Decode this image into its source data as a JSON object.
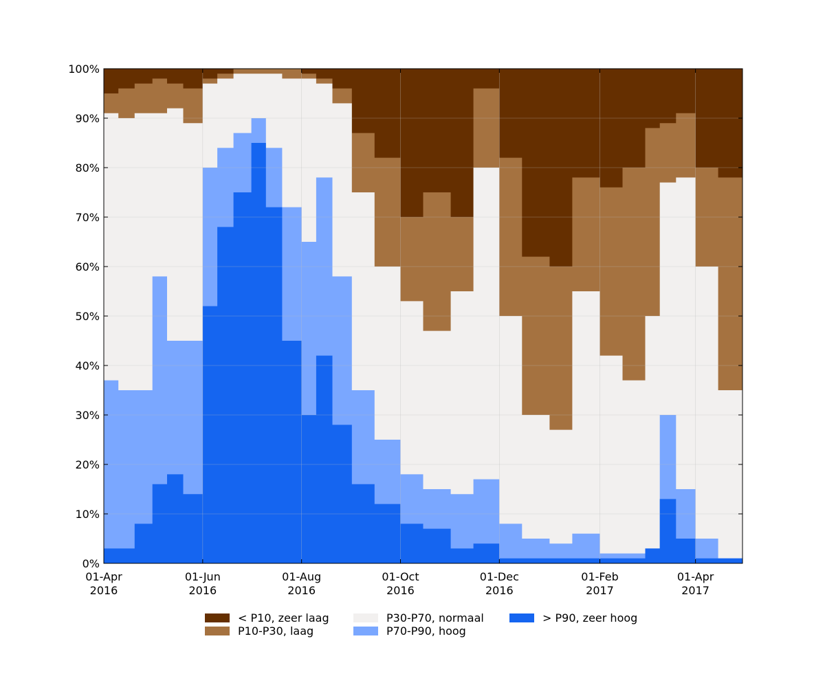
{
  "chart_data": {
    "type": "area",
    "stacked": true,
    "normalized_percent": true,
    "x_start": "2016-04-01",
    "x_end": "2017-04-30",
    "x_tick_labels": [
      {
        "date": "2016-04-01",
        "line1": "01-Apr",
        "line2": "2016"
      },
      {
        "date": "2016-06-01",
        "line1": "01-Jun",
        "line2": "2016"
      },
      {
        "date": "2016-08-01",
        "line1": "01-Aug",
        "line2": "2016"
      },
      {
        "date": "2016-10-01",
        "line1": "01-Oct",
        "line2": "2016"
      },
      {
        "date": "2016-12-01",
        "line1": "01-Dec",
        "line2": "2016"
      },
      {
        "date": "2017-02-01",
        "line1": "01-Feb",
        "line2": "2017"
      },
      {
        "date": "2017-04-01",
        "line1": "01-Apr",
        "line2": "2017"
      }
    ],
    "ylim": [
      0,
      100
    ],
    "y_ticks": [
      0,
      10,
      20,
      30,
      40,
      50,
      60,
      70,
      80,
      90,
      100
    ],
    "y_tick_suffix": "%",
    "grid": true,
    "legend_position": "bottom",
    "boundaries_note": "values are cumulative upper bounds in percent, bottom to top",
    "dates": [
      "2016-04-01",
      "2016-04-10",
      "2016-04-20",
      "2016-05-01",
      "2016-05-10",
      "2016-05-20",
      "2016-06-01",
      "2016-06-10",
      "2016-06-20",
      "2016-07-01",
      "2016-07-10",
      "2016-07-20",
      "2016-08-01",
      "2016-08-10",
      "2016-08-20",
      "2016-09-01",
      "2016-09-15",
      "2016-10-01",
      "2016-10-15",
      "2016-11-01",
      "2016-11-15",
      "2016-12-01",
      "2016-12-15",
      "2017-01-01",
      "2017-01-15",
      "2017-02-01",
      "2017-02-15",
      "2017-03-01",
      "2017-03-10",
      "2017-03-20",
      "2017-04-01",
      "2017-04-15",
      "2017-04-30"
    ],
    "series": [
      {
        "name": "> P90, zeer hoog",
        "color": "#1565f0",
        "cum": [
          3,
          3,
          8,
          16,
          18,
          14,
          52,
          68,
          75,
          85,
          72,
          45,
          30,
          42,
          28,
          16,
          12,
          8,
          7,
          3,
          4,
          1,
          1,
          1,
          1,
          1,
          1,
          3,
          13,
          5,
          1,
          1,
          1
        ]
      },
      {
        "name": "P70-P90, hoog",
        "color": "#7aa7ff",
        "cum": [
          37,
          35,
          35,
          58,
          45,
          45,
          80,
          84,
          87,
          90,
          84,
          72,
          65,
          78,
          58,
          35,
          25,
          18,
          15,
          14,
          17,
          8,
          5,
          4,
          6,
          2,
          2,
          3,
          30,
          15,
          5,
          1,
          2
        ]
      },
      {
        "name": "P30-P70, normaal",
        "color": "#f2f0ef",
        "cum": [
          91,
          90,
          91,
          91,
          92,
          89,
          97,
          98,
          99,
          99,
          99,
          98,
          98,
          97,
          93,
          75,
          60,
          53,
          47,
          55,
          80,
          50,
          30,
          27,
          55,
          42,
          37,
          50,
          77,
          78,
          60,
          35,
          40
        ]
      },
      {
        "name": "P10-P30, laag",
        "color": "#a57240",
        "cum": [
          95,
          96,
          97,
          98,
          97,
          96,
          98,
          99,
          100,
          100,
          100,
          100,
          99,
          98,
          96,
          87,
          82,
          70,
          75,
          70,
          96,
          82,
          62,
          60,
          78,
          76,
          80,
          88,
          89,
          91,
          80,
          78,
          86
        ]
      },
      {
        "name": "< P10, zeer laag",
        "color": "#652f00",
        "cum": [
          100,
          100,
          100,
          100,
          100,
          100,
          100,
          100,
          100,
          100,
          100,
          100,
          100,
          100,
          100,
          100,
          100,
          100,
          100,
          100,
          100,
          100,
          100,
          100,
          100,
          100,
          100,
          100,
          100,
          100,
          100,
          100,
          100
        ]
      }
    ]
  },
  "legend": [
    {
      "label": "< P10, zeer laag",
      "color": "#652f00"
    },
    {
      "label": "P10-P30, laag",
      "color": "#a57240"
    },
    {
      "label": "P30-P70, normaal",
      "color": "#f2f0ef"
    },
    {
      "label": "P70-P90, hoog",
      "color": "#7aa7ff"
    },
    {
      "label": "> P90, zeer hoog",
      "color": "#1565f0"
    }
  ]
}
